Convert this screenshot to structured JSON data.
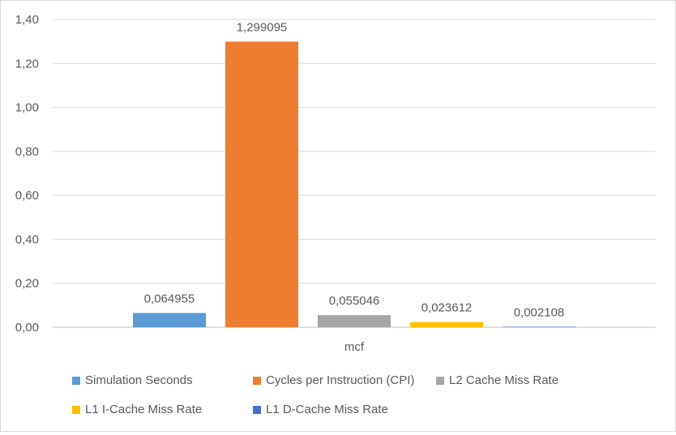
{
  "chart_data": {
    "type": "bar",
    "categories": [
      "mcf"
    ],
    "series": [
      {
        "name": "Simulation Seconds",
        "values": [
          0.064955
        ],
        "label": "0,064955",
        "color": "#5b9bd5"
      },
      {
        "name": "Cycles per Instruction (CPI)",
        "values": [
          1.299095
        ],
        "label": "1,299095",
        "color": "#ed7d31"
      },
      {
        "name": "L2 Cache Miss Rate",
        "values": [
          0.055046
        ],
        "label": "0,055046",
        "color": "#a5a5a5"
      },
      {
        "name": "L1 I-Cache Miss Rate",
        "values": [
          0.023612
        ],
        "label": "0,023612",
        "color": "#ffc000"
      },
      {
        "name": "L1 D-Cache Miss Rate",
        "values": [
          0.002108
        ],
        "label": "0,002108",
        "color": "#4472c4"
      }
    ],
    "ylim": [
      0,
      1.4
    ],
    "yticks": [
      {
        "value": 0.0,
        "label": "0,00"
      },
      {
        "value": 0.2,
        "label": "0,20"
      },
      {
        "value": 0.4,
        "label": "0,40"
      },
      {
        "value": 0.6,
        "label": "0,60"
      },
      {
        "value": 0.8,
        "label": "0,80"
      },
      {
        "value": 1.0,
        "label": "1,00"
      },
      {
        "value": 1.2,
        "label": "1,20"
      },
      {
        "value": 1.4,
        "label": "1,40"
      }
    ],
    "grid": true,
    "legend": "bottom",
    "title": "",
    "xlabel": "",
    "ylabel": ""
  }
}
